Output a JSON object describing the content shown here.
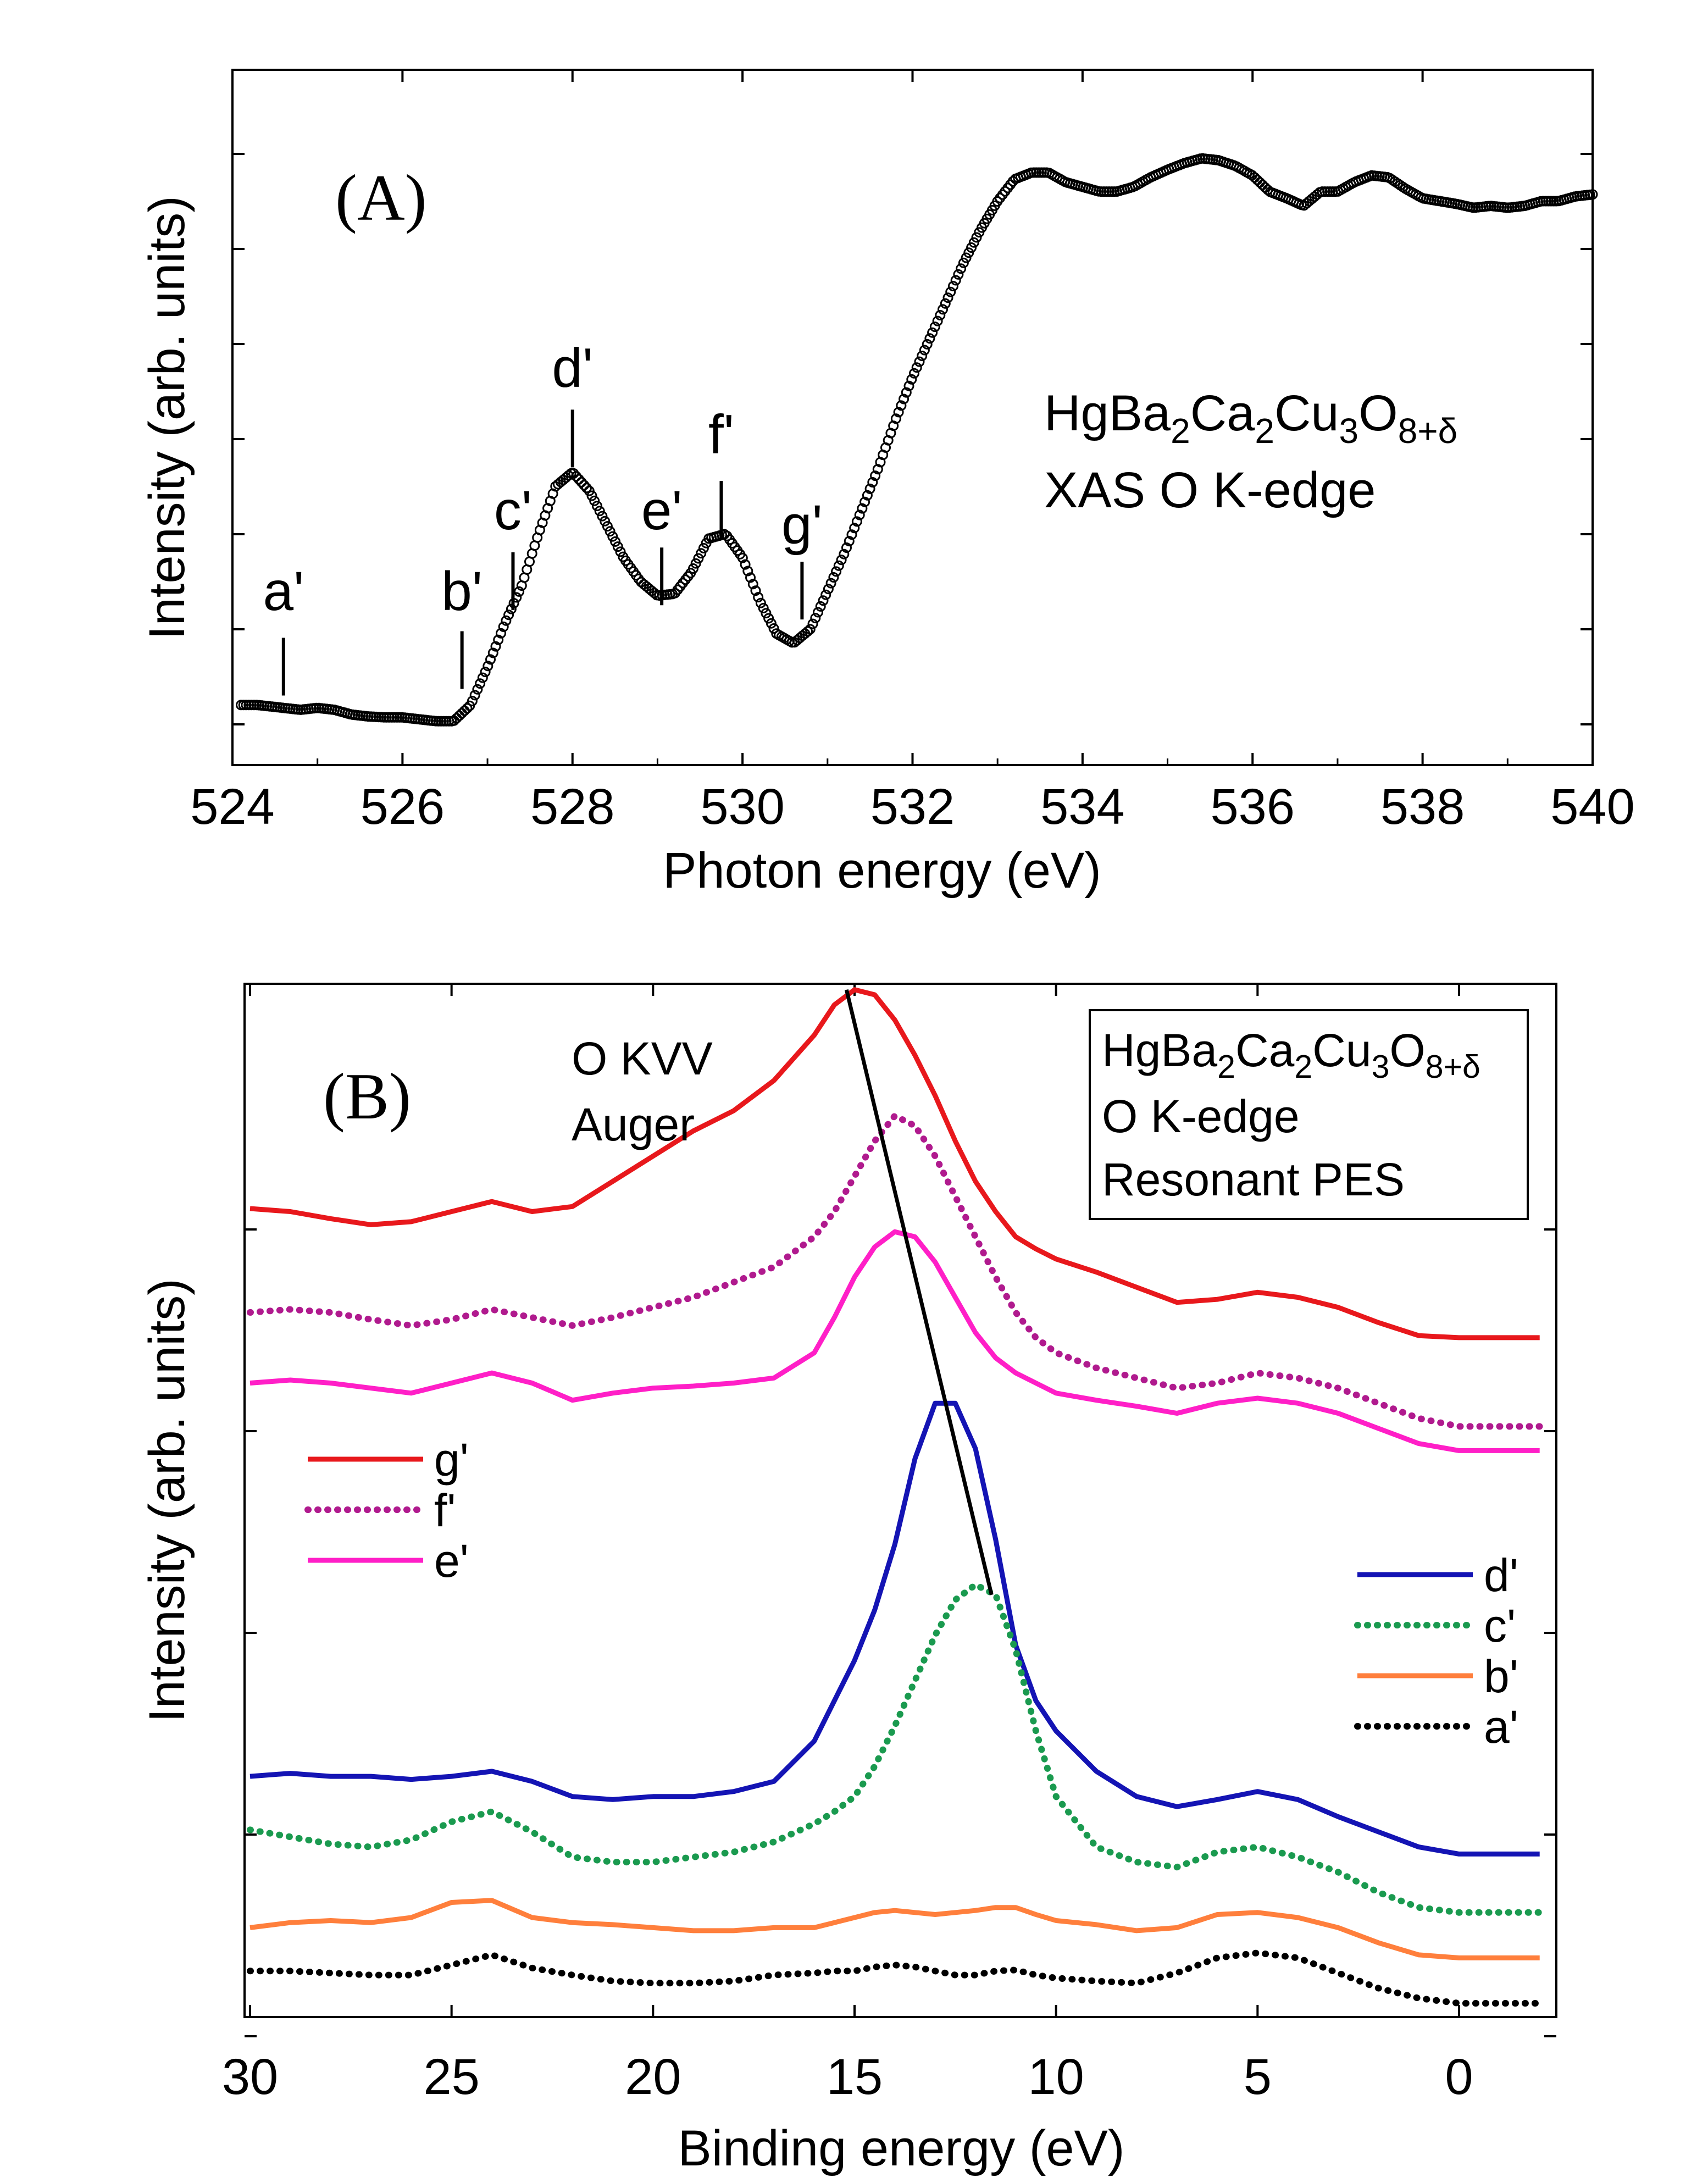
{
  "chart_data": [
    {
      "panel": "A",
      "type": "scatter",
      "panel_label": "(A)",
      "xlabel": "Photon energy (eV)",
      "ylabel": "Intensity (arb. units)",
      "xlim": [
        524,
        540
      ],
      "ylim": [
        0,
        6
      ],
      "xticks": [
        524,
        526,
        528,
        530,
        532,
        534,
        536,
        538,
        540
      ],
      "annotation": {
        "formula": [
          {
            "t": "HgBa"
          },
          {
            "t": "2",
            "sub": true
          },
          {
            "t": "Ca"
          },
          {
            "t": "2",
            "sub": true
          },
          {
            "t": "Cu"
          },
          {
            "t": "3",
            "sub": true
          },
          {
            "t": "O"
          },
          {
            "t": "8+δ",
            "sub": true
          }
        ],
        "line2": "XAS O K-edge"
      },
      "marker_labels": [
        {
          "label": "a'",
          "x": 524.6,
          "y_marker": 0.65,
          "y_text": 1.55
        },
        {
          "label": "b'",
          "x": 526.7,
          "y_marker": 0.72,
          "y_text": 1.55
        },
        {
          "label": "c'",
          "x": 527.3,
          "y_marker": 1.55,
          "y_text": 2.4
        },
        {
          "label": "d'",
          "x": 528.0,
          "y_marker": 3.05,
          "y_text": 3.9
        },
        {
          "label": "e'",
          "x": 529.05,
          "y_marker": 1.6,
          "y_text": 2.4
        },
        {
          "label": "f'",
          "x": 529.75,
          "y_marker": 2.3,
          "y_text": 3.2
        },
        {
          "label": "g'",
          "x": 530.7,
          "y_marker": 1.45,
          "y_text": 2.25
        }
      ],
      "x": [
        524.1,
        524.3,
        524.6,
        524.8,
        525.0,
        525.2,
        525.4,
        525.6,
        525.8,
        526.0,
        526.2,
        526.4,
        526.6,
        526.8,
        527.0,
        527.2,
        527.4,
        527.6,
        527.8,
        528.0,
        528.2,
        528.4,
        528.6,
        528.8,
        529.0,
        529.2,
        529.4,
        529.6,
        529.8,
        530.0,
        530.2,
        530.4,
        530.6,
        530.8,
        531.0,
        531.2,
        531.4,
        531.6,
        531.8,
        532.0,
        532.2,
        532.4,
        532.6,
        532.8,
        533.0,
        533.2,
        533.4,
        533.6,
        533.8,
        534.0,
        534.2,
        534.4,
        534.6,
        534.8,
        535.0,
        535.2,
        535.4,
        535.6,
        535.8,
        536.0,
        536.2,
        536.4,
        536.6,
        536.8,
        537.0,
        537.2,
        537.4,
        537.6,
        537.8,
        538.0,
        538.2,
        538.4,
        538.6,
        538.8,
        539.0,
        539.2,
        539.4,
        539.6,
        539.8,
        540.0
      ],
      "y": [
        0.55,
        0.55,
        0.52,
        0.5,
        0.52,
        0.5,
        0.45,
        0.43,
        0.42,
        0.42,
        0.4,
        0.38,
        0.38,
        0.55,
        0.95,
        1.4,
        1.8,
        2.35,
        2.85,
        3.0,
        2.8,
        2.45,
        2.1,
        1.85,
        1.7,
        1.72,
        1.95,
        2.3,
        2.35,
        2.1,
        1.65,
        1.3,
        1.2,
        1.35,
        1.75,
        2.15,
        2.6,
        3.05,
        3.55,
        4.0,
        4.4,
        4.8,
        5.2,
        5.55,
        5.85,
        6.08,
        6.15,
        6.15,
        6.05,
        6.0,
        5.95,
        5.95,
        6.0,
        6.1,
        6.18,
        6.25,
        6.3,
        6.28,
        6.22,
        6.12,
        5.95,
        5.88,
        5.8,
        5.95,
        5.95,
        6.05,
        6.12,
        6.1,
        5.98,
        5.88,
        5.85,
        5.82,
        5.78,
        5.8,
        5.78,
        5.8,
        5.85,
        5.85,
        5.9,
        5.92
      ]
    },
    {
      "panel": "B",
      "type": "line",
      "panel_label": "(B)",
      "xlabel": "Binding energy (eV)",
      "ylabel": "Intensity (arb. units)",
      "xlim": [
        30,
        -2.5
      ],
      "ylim": [
        0,
        10
      ],
      "xticks": [
        30,
        25,
        20,
        15,
        10,
        5,
        0
      ],
      "annotation": {
        "formula": [
          {
            "t": "HgBa"
          },
          {
            "t": "2",
            "sub": true
          },
          {
            "t": "Ca"
          },
          {
            "t": "2",
            "sub": true
          },
          {
            "t": "Cu"
          },
          {
            "t": "3",
            "sub": true
          },
          {
            "t": "O"
          },
          {
            "t": "8+δ",
            "sub": true
          }
        ],
        "line2": "O K-edge",
        "line3": "Resonant PES"
      },
      "auger_label": [
        "O KVV",
        "Auger"
      ],
      "auger_line": {
        "x": [
          15.2,
          11.6
        ],
        "y": [
          10.05,
          4.05
        ]
      },
      "x": [
        30,
        29,
        28,
        27,
        26,
        25,
        24,
        23,
        22,
        21,
        20,
        19,
        18,
        17,
        16,
        15.5,
        15,
        14.5,
        14,
        13.5,
        13,
        12.5,
        12,
        11.5,
        11,
        10.5,
        10,
        9,
        8,
        7,
        6,
        5,
        4,
        3,
        2,
        1,
        0,
        -1,
        -2
      ],
      "series": [
        {
          "name": "g'",
          "color": "#e8181c",
          "dash": false,
          "legend": "left",
          "values": [
            7.88,
            7.85,
            7.78,
            7.72,
            7.75,
            7.85,
            7.95,
            7.85,
            7.9,
            8.15,
            8.4,
            8.65,
            8.85,
            9.15,
            9.6,
            9.9,
            10.05,
            10.0,
            9.75,
            9.4,
            9.0,
            8.55,
            8.15,
            7.85,
            7.6,
            7.48,
            7.38,
            7.25,
            7.1,
            6.95,
            6.98,
            7.05,
            7.0,
            6.9,
            6.75,
            6.62,
            6.6,
            6.6,
            6.6
          ]
        },
        {
          "name": "f'",
          "color": "#b01a8e",
          "dash": true,
          "legend": "left",
          "values": [
            6.85,
            6.88,
            6.85,
            6.78,
            6.72,
            6.78,
            6.88,
            6.8,
            6.72,
            6.8,
            6.9,
            7.0,
            7.15,
            7.3,
            7.6,
            7.85,
            8.2,
            8.55,
            8.8,
            8.7,
            8.4,
            8.0,
            7.6,
            7.2,
            6.85,
            6.6,
            6.45,
            6.3,
            6.2,
            6.1,
            6.15,
            6.25,
            6.2,
            6.1,
            5.95,
            5.8,
            5.72,
            5.72,
            5.72
          ]
        },
        {
          "name": "e'",
          "color": "#ff1fc7",
          "dash": false,
          "legend": "left",
          "values": [
            6.15,
            6.18,
            6.15,
            6.1,
            6.05,
            6.15,
            6.25,
            6.15,
            5.98,
            6.05,
            6.1,
            6.12,
            6.15,
            6.2,
            6.45,
            6.8,
            7.2,
            7.5,
            7.65,
            7.6,
            7.35,
            7.0,
            6.65,
            6.4,
            6.25,
            6.15,
            6.05,
            5.98,
            5.92,
            5.85,
            5.95,
            6.0,
            5.95,
            5.85,
            5.7,
            5.55,
            5.48,
            5.48,
            5.48
          ]
        },
        {
          "name": "d'",
          "color": "#1414b4",
          "dash": false,
          "legend": "right",
          "values": [
            2.25,
            2.28,
            2.25,
            2.25,
            2.22,
            2.25,
            2.3,
            2.2,
            2.05,
            2.02,
            2.05,
            2.05,
            2.1,
            2.2,
            2.6,
            3.0,
            3.4,
            3.9,
            4.55,
            5.4,
            5.95,
            5.95,
            5.5,
            4.6,
            3.55,
            3.0,
            2.7,
            2.3,
            2.05,
            1.95,
            2.02,
            2.1,
            2.02,
            1.85,
            1.7,
            1.55,
            1.48,
            1.48,
            1.48
          ]
        },
        {
          "name": "c'",
          "color": "#1a9a4f",
          "dash": true,
          "legend": "right",
          "values": [
            1.72,
            1.65,
            1.58,
            1.55,
            1.62,
            1.8,
            1.9,
            1.7,
            1.45,
            1.4,
            1.4,
            1.45,
            1.5,
            1.6,
            1.78,
            1.9,
            2.05,
            2.35,
            2.75,
            3.2,
            3.65,
            4.0,
            4.15,
            4.05,
            3.5,
            2.7,
            2.05,
            1.55,
            1.4,
            1.35,
            1.5,
            1.55,
            1.45,
            1.3,
            1.1,
            0.95,
            0.9,
            0.9,
            0.9
          ]
        },
        {
          "name": "b'",
          "color": "#ff7f3c",
          "dash": false,
          "legend": "right",
          "values": [
            0.75,
            0.8,
            0.82,
            0.8,
            0.85,
            1.0,
            1.02,
            0.85,
            0.8,
            0.78,
            0.75,
            0.72,
            0.72,
            0.75,
            0.75,
            0.8,
            0.85,
            0.9,
            0.92,
            0.9,
            0.88,
            0.9,
            0.92,
            0.95,
            0.95,
            0.88,
            0.82,
            0.78,
            0.72,
            0.75,
            0.88,
            0.9,
            0.85,
            0.75,
            0.6,
            0.48,
            0.45,
            0.45,
            0.45
          ]
        },
        {
          "name": "a'",
          "color": "#000000",
          "dash": true,
          "legend": "right",
          "values": [
            0.32,
            0.32,
            0.3,
            0.28,
            0.28,
            0.38,
            0.48,
            0.35,
            0.28,
            0.22,
            0.2,
            0.2,
            0.22,
            0.28,
            0.3,
            0.32,
            0.32,
            0.36,
            0.38,
            0.36,
            0.32,
            0.28,
            0.28,
            0.32,
            0.33,
            0.28,
            0.25,
            0.22,
            0.2,
            0.3,
            0.45,
            0.5,
            0.45,
            0.3,
            0.15,
            0.05,
            0.0,
            0.0,
            0.0
          ]
        }
      ]
    }
  ]
}
